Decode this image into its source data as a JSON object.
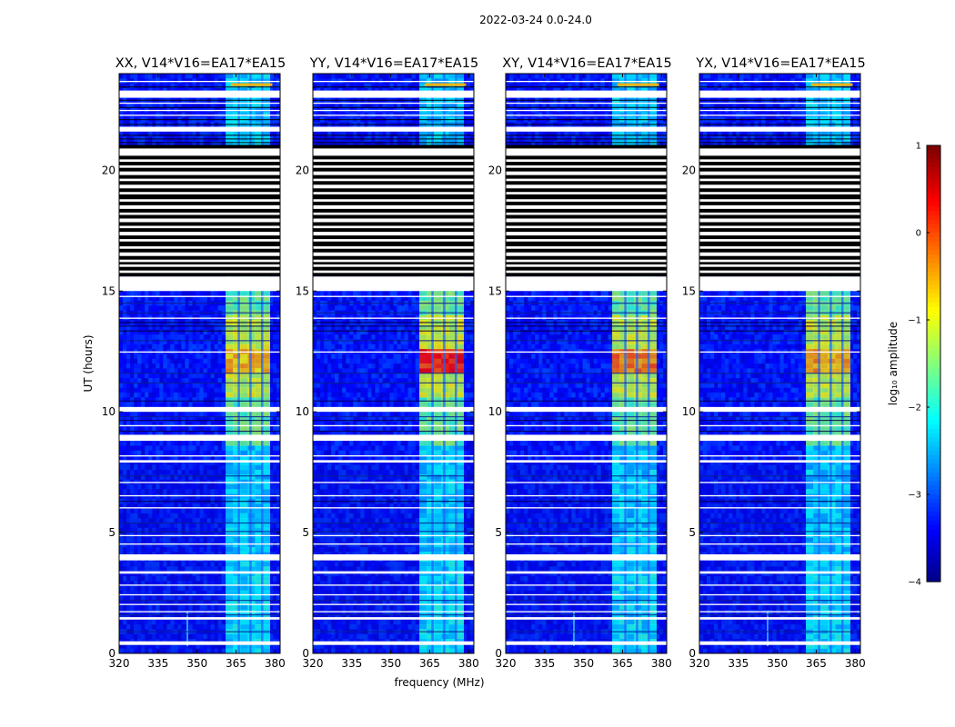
{
  "chart_data": {
    "type": "heatmap",
    "title": "2022-03-24 0.0-24.0",
    "xlabel": "frequency (MHz)",
    "ylabel": "UT (hours)",
    "xlim": [
      320,
      382
    ],
    "ylim": [
      0,
      24
    ],
    "x_ticks": [
      "320",
      "335",
      "350",
      "365",
      "380"
    ],
    "x_tick_values": [
      320,
      335,
      350,
      365,
      380
    ],
    "y_ticks": [
      "0",
      "5",
      "10",
      "15",
      "20"
    ],
    "y_tick_values": [
      0,
      5,
      10,
      15,
      20
    ],
    "panels": [
      {
        "title": "XX, V14*V16=EA17*EA15",
        "max_log": -0.6,
        "left_artifact": true
      },
      {
        "title": "YY, V14*V16=EA17*EA15",
        "max_log": 0.2,
        "left_artifact": false
      },
      {
        "title": "XY, V14*V16=EA17*EA15",
        "max_log": -0.3,
        "left_artifact": true
      },
      {
        "title": "YX, V14*V16=EA17*EA15",
        "max_log": -0.5,
        "left_artifact": true
      }
    ],
    "rfi_band_mhz": [
      361,
      378
    ],
    "rfi_channel_edges_mhz": [
      366,
      370.5,
      375
    ],
    "background_log": -3.3,
    "colorbar": {
      "label": "log₁₀ amplitude",
      "min": -4,
      "max": 1,
      "ticks": [
        "−4",
        "−3",
        "−2",
        "−1",
        "0",
        "1"
      ],
      "tick_values": [
        -4,
        -3,
        -2,
        -1,
        0,
        1
      ],
      "colormap": "jet"
    },
    "flagged_hours": [
      [
        0.35,
        0.5
      ],
      [
        1.4,
        1.5
      ],
      [
        1.7,
        1.75
      ],
      [
        2.0,
        2.05
      ],
      [
        2.4,
        2.45
      ],
      [
        2.8,
        2.85
      ],
      [
        3.3,
        3.4
      ],
      [
        3.85,
        4.1
      ],
      [
        4.5,
        4.55
      ],
      [
        4.85,
        4.9
      ],
      [
        6.0,
        6.05
      ],
      [
        6.5,
        6.55
      ],
      [
        7.05,
        7.1
      ],
      [
        7.9,
        8.0
      ],
      [
        8.15,
        8.2
      ],
      [
        8.8,
        9.05
      ],
      [
        9.4,
        9.45
      ],
      [
        10.0,
        10.2
      ],
      [
        12.45,
        12.5
      ],
      [
        13.85,
        13.9
      ],
      [
        14.75,
        14.8
      ],
      [
        15.0,
        15.6
      ],
      [
        15.75,
        15.85
      ],
      [
        16.0,
        16.1
      ],
      [
        16.2,
        16.3
      ],
      [
        16.45,
        16.6
      ],
      [
        16.75,
        16.85
      ],
      [
        17.05,
        17.15
      ],
      [
        17.3,
        17.45
      ],
      [
        17.6,
        17.7
      ],
      [
        17.85,
        18.0
      ],
      [
        18.15,
        18.25
      ],
      [
        18.4,
        18.55
      ],
      [
        18.7,
        18.8
      ],
      [
        19.0,
        19.1
      ],
      [
        19.25,
        19.4
      ],
      [
        19.55,
        19.65
      ],
      [
        19.8,
        19.95
      ],
      [
        20.1,
        20.2
      ],
      [
        20.35,
        20.45
      ],
      [
        20.6,
        20.9
      ],
      [
        21.6,
        21.8
      ],
      [
        22.25,
        22.3
      ],
      [
        22.45,
        22.5
      ],
      [
        22.75,
        22.8
      ],
      [
        23.0,
        23.3
      ],
      [
        23.65,
        23.7
      ]
    ],
    "thin_lines_hours": [
      [
        0.9,
        "#0a1e8c"
      ],
      [
        1.6,
        "#0a1e8c"
      ],
      [
        2.2,
        "#0a1e8c"
      ],
      [
        5.05,
        "#0a1e8c"
      ],
      [
        5.4,
        "#0a1e8c"
      ],
      [
        6.3,
        "#000050"
      ],
      [
        7.35,
        "#0a1e8c"
      ],
      [
        9.2,
        "#000040"
      ],
      [
        9.65,
        "#000040"
      ],
      [
        9.8,
        "#0a1e8c"
      ],
      [
        10.45,
        "#000050"
      ],
      [
        11.2,
        "#0a1e8c"
      ],
      [
        11.6,
        "#0a1e8c"
      ],
      [
        12.95,
        "#0a1e8c"
      ],
      [
        13.35,
        "#000030"
      ],
      [
        13.55,
        "#000040"
      ],
      [
        13.7,
        "#000030"
      ],
      [
        14.1,
        "#0a1e8c"
      ],
      [
        14.5,
        "#0a1e8c"
      ],
      [
        21.15,
        "#000000"
      ],
      [
        21.3,
        "#000000"
      ],
      [
        21.45,
        "#000000"
      ],
      [
        21.9,
        "#000000"
      ],
      [
        22.1,
        "#000000"
      ],
      [
        22.6,
        "#000000"
      ],
      [
        22.9,
        "#000000"
      ],
      [
        23.45,
        "#000000"
      ]
    ],
    "flag_color": "#ffffff",
    "dead_color": "#000000"
  }
}
